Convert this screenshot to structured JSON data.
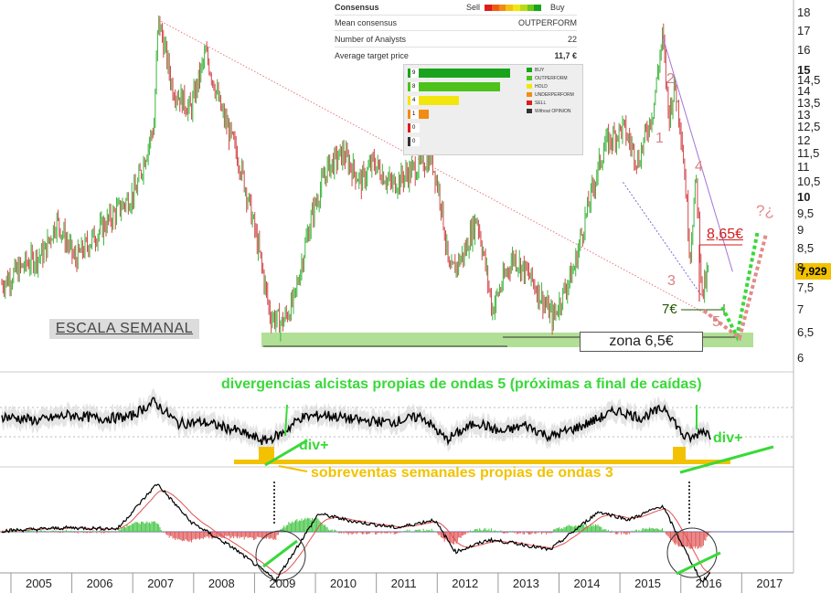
{
  "consensus": {
    "title": "Consensus",
    "sell_label": "Sell",
    "buy_label": "Buy",
    "rows": [
      {
        "label": "Mean consensus",
        "value": "OUTPERFORM"
      },
      {
        "label": "Number of Analysts",
        "value": "22"
      },
      {
        "label": "Average target price",
        "value": "11,7 €"
      }
    ],
    "counts": [
      {
        "rating": "BUY",
        "count": 9,
        "color": "#19a31c"
      },
      {
        "rating": "OUTPERFORM",
        "count": 8,
        "color": "#4cc21b"
      },
      {
        "rating": "HOLD",
        "count": 4,
        "color": "#f3e60f"
      },
      {
        "rating": "UNDERPERFORM",
        "count": 1,
        "color": "#f28c12"
      },
      {
        "rating": "SELL",
        "count": 0,
        "color": "#dd1c1c"
      },
      {
        "rating": "Without OPINION",
        "count": 0,
        "color": "#333333"
      }
    ]
  },
  "annotations": {
    "scale_label": "ESCALA SEMANAL",
    "zone_label": "zona 6,5€",
    "target_label": "8,65€",
    "support_label": "7€",
    "question_label": "?¿",
    "divergence_text": "divergencias alcistas propias de ondas 5 (próximas a final de caídas)",
    "oversold_text": "sobreventas semanales propias de ondas 3",
    "div_plus_1": "div+",
    "div_plus_2": "div+",
    "wave_labels": [
      "1",
      "2",
      "3",
      "4",
      "5"
    ],
    "last_price": "7,929"
  },
  "colors": {
    "up_candle": "#3cb43c",
    "down_candle": "#d2474b",
    "green_annotation": "#39d939",
    "yellow_annotation": "#f2c200",
    "zone_fill": "#a9dc8a",
    "oscillator_band": "#d9d9d9",
    "macd_line": "#000000",
    "signal_line": "#e05050"
  },
  "chart_data": [
    {
      "type": "candlestick",
      "title": "",
      "yscale": "log",
      "ylim": [
        6,
        18.5
      ],
      "x_ticks": [
        "2005",
        "2006",
        "2007",
        "2008",
        "2009",
        "2010",
        "2011",
        "2012",
        "2013",
        "2014",
        "2015",
        "2016",
        "2017"
      ],
      "y_ticks": [
        "18",
        "17",
        "16",
        "15",
        "14,5",
        "14",
        "13,5",
        "13",
        "12,5",
        "12",
        "11,5",
        "11",
        "10,5",
        "10",
        "9,5",
        "9",
        "8,5",
        "8",
        "7,5",
        "7",
        "6,5",
        "6"
      ],
      "bold_y_ticks": [
        "15",
        "10"
      ],
      "series": [
        {
          "points": [
            {
              "x": 2004.4,
              "y": 7.6
            },
            {
              "x": 2004.8,
              "y": 8.1
            },
            {
              "x": 2005.1,
              "y": 8.4
            },
            {
              "x": 2005.3,
              "y": 9.3
            },
            {
              "x": 2005.6,
              "y": 8.2
            },
            {
              "x": 2005.9,
              "y": 8.8
            },
            {
              "x": 2006.3,
              "y": 9.6
            },
            {
              "x": 2006.6,
              "y": 10.2
            },
            {
              "x": 2006.9,
              "y": 12.6
            },
            {
              "x": 2006.97,
              "y": 17.6
            },
            {
              "x": 2007.2,
              "y": 14.2
            },
            {
              "x": 2007.5,
              "y": 13.2
            },
            {
              "x": 2007.75,
              "y": 15.8
            },
            {
              "x": 2008.0,
              "y": 13.2
            },
            {
              "x": 2008.3,
              "y": 11.2
            },
            {
              "x": 2008.6,
              "y": 8.6
            },
            {
              "x": 2008.8,
              "y": 6.9
            },
            {
              "x": 2009.0,
              "y": 6.7
            },
            {
              "x": 2009.2,
              "y": 7.2
            },
            {
              "x": 2009.5,
              "y": 9.5
            },
            {
              "x": 2009.75,
              "y": 11.0
            },
            {
              "x": 2010.0,
              "y": 11.5
            },
            {
              "x": 2010.3,
              "y": 10.5
            },
            {
              "x": 2010.5,
              "y": 11.2
            },
            {
              "x": 2010.8,
              "y": 10.4
            },
            {
              "x": 2011.2,
              "y": 11.0
            },
            {
              "x": 2011.45,
              "y": 11.4
            },
            {
              "x": 2011.6,
              "y": 10.0
            },
            {
              "x": 2011.75,
              "y": 7.8
            },
            {
              "x": 2012.0,
              "y": 8.4
            },
            {
              "x": 2012.2,
              "y": 9.4
            },
            {
              "x": 2012.45,
              "y": 7.0
            },
            {
              "x": 2012.8,
              "y": 8.3
            },
            {
              "x": 2013.1,
              "y": 7.7
            },
            {
              "x": 2013.45,
              "y": 6.8
            },
            {
              "x": 2013.8,
              "y": 8.0
            },
            {
              "x": 2014.0,
              "y": 9.5
            },
            {
              "x": 2014.3,
              "y": 11.8
            },
            {
              "x": 2014.6,
              "y": 12.5
            },
            {
              "x": 2014.85,
              "y": 11.2
            },
            {
              "x": 2015.1,
              "y": 13.3
            },
            {
              "x": 2015.25,
              "y": 16.7
            },
            {
              "x": 2015.35,
              "y": 12.9
            },
            {
              "x": 2015.45,
              "y": 14.3
            },
            {
              "x": 2015.55,
              "y": 12.5
            },
            {
              "x": 2015.7,
              "y": 8.3
            },
            {
              "x": 2015.8,
              "y": 10.6
            },
            {
              "x": 2015.9,
              "y": 7.3
            },
            {
              "x": 2016.0,
              "y": 7.9
            }
          ]
        }
      ]
    },
    {
      "type": "line",
      "title": "",
      "series": [
        {
          "points": [
            {
              "x": 2004.4,
              "y": 58
            },
            {
              "x": 2005.0,
              "y": 52
            },
            {
              "x": 2005.5,
              "y": 60
            },
            {
              "x": 2006.0,
              "y": 55
            },
            {
              "x": 2006.5,
              "y": 57
            },
            {
              "x": 2006.9,
              "y": 78
            },
            {
              "x": 2007.3,
              "y": 48
            },
            {
              "x": 2007.7,
              "y": 50
            },
            {
              "x": 2008.2,
              "y": 40
            },
            {
              "x": 2008.7,
              "y": 24
            },
            {
              "x": 2009.0,
              "y": 34
            },
            {
              "x": 2009.3,
              "y": 56
            },
            {
              "x": 2009.7,
              "y": 60
            },
            {
              "x": 2010.3,
              "y": 52
            },
            {
              "x": 2010.8,
              "y": 50
            },
            {
              "x": 2011.3,
              "y": 58
            },
            {
              "x": 2011.7,
              "y": 26
            },
            {
              "x": 2012.2,
              "y": 50
            },
            {
              "x": 2012.6,
              "y": 36
            },
            {
              "x": 2013.0,
              "y": 46
            },
            {
              "x": 2013.4,
              "y": 30
            },
            {
              "x": 2013.9,
              "y": 44
            },
            {
              "x": 2014.5,
              "y": 66
            },
            {
              "x": 2014.9,
              "y": 56
            },
            {
              "x": 2015.3,
              "y": 70
            },
            {
              "x": 2015.6,
              "y": 30
            },
            {
              "x": 2015.75,
              "y": 28
            },
            {
              "x": 2015.9,
              "y": 40
            },
            {
              "x": 2016.05,
              "y": 32
            }
          ]
        }
      ]
    },
    {
      "type": "line",
      "title": "",
      "series": [
        {
          "points": [
            {
              "x": 2004.4,
              "y": 0.05
            },
            {
              "x": 2005.5,
              "y": 0.2
            },
            {
              "x": 2006.3,
              "y": 0.15
            },
            {
              "x": 2006.95,
              "y": 2.4
            },
            {
              "x": 2007.5,
              "y": 0.5
            },
            {
              "x": 2008.2,
              "y": -0.8
            },
            {
              "x": 2008.9,
              "y": -2.4
            },
            {
              "x": 2009.6,
              "y": 0.9
            },
            {
              "x": 2010.2,
              "y": 0.5
            },
            {
              "x": 2010.9,
              "y": 0.2
            },
            {
              "x": 2011.5,
              "y": 0.6
            },
            {
              "x": 2011.85,
              "y": -1.0
            },
            {
              "x": 2012.4,
              "y": -0.4
            },
            {
              "x": 2012.9,
              "y": -0.6
            },
            {
              "x": 2013.4,
              "y": -0.9
            },
            {
              "x": 2014.2,
              "y": 1.0
            },
            {
              "x": 2014.7,
              "y": 0.6
            },
            {
              "x": 2015.25,
              "y": 1.3
            },
            {
              "x": 2015.65,
              "y": -1.1
            },
            {
              "x": 2015.9,
              "y": -2.5
            },
            {
              "x": 2016.05,
              "y": -2.0
            }
          ]
        }
      ]
    }
  ]
}
